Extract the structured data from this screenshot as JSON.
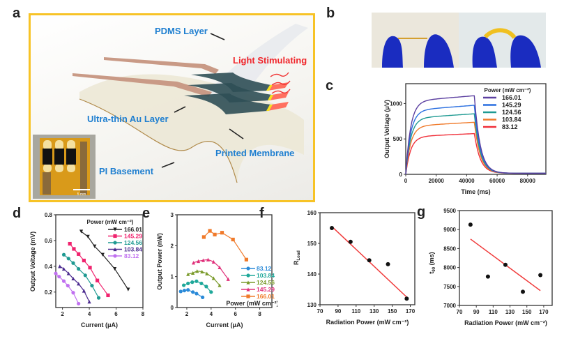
{
  "figure": {
    "panel_labels": {
      "a": "a",
      "b": "b",
      "c": "c",
      "d": "d",
      "e": "e",
      "f": "f",
      "g": "g"
    },
    "colors": {
      "frame": "#f7c326",
      "label_blue": "#1f7fd0",
      "label_red": "#f0262b",
      "fit_line": "#f03a3a"
    }
  },
  "panel_a": {
    "labels": {
      "pdms": "PDMS Layer",
      "light": "Light Stimulating",
      "au": "Ultra-thin Au Layer",
      "membrane": "Printed Membrane",
      "pi": "PI Basement"
    },
    "inset_scale": "5 mm"
  },
  "panel_b": {
    "photos": [
      "flat-device-between-fingers",
      "bent-device-between-fingers"
    ]
  },
  "chart_data": [
    {
      "id": "c",
      "type": "line",
      "xlabel": "Time (ms)",
      "ylabel": "Output Voltage (μV)",
      "xlim": [
        0,
        92000
      ],
      "ylim": [
        0,
        1280
      ],
      "xticks": [
        0,
        20000,
        40000,
        60000,
        80000
      ],
      "yticks": [
        0,
        500,
        1000
      ],
      "legend_title": "Power (mW cm⁻²)",
      "legend_position": "top-right",
      "series": [
        {
          "name": "166.01",
          "color": "#5b3fa0",
          "plateau": 1110,
          "onset": 1030
        },
        {
          "name": "145.29",
          "color": "#2a6fe0",
          "plateau": 975,
          "onset": 900
        },
        {
          "name": "124.56",
          "color": "#1f9a92",
          "plateau": 855,
          "onset": 790
        },
        {
          "name": "103.84",
          "color": "#f07a2a",
          "plateau": 735,
          "onset": 680
        },
        {
          "name": "83.12",
          "color": "#f0303a",
          "plateau": 575,
          "onset": 530
        }
      ],
      "light_on_ms": [
        0,
        45000
      ]
    },
    {
      "id": "d",
      "type": "line",
      "xlabel": "Current (μA)",
      "ylabel": "Output Voltage (mV)",
      "xlim": [
        1.5,
        8
      ],
      "ylim": [
        0.08,
        0.8
      ],
      "xticks": [
        2,
        4,
        6,
        8
      ],
      "yticks": [
        0.2,
        0.4,
        0.6,
        0.8
      ],
      "legend_title": "Power (mW cm⁻²)",
      "legend_position": "top-right",
      "series": [
        {
          "name": "166.01",
          "color": "#222222",
          "marker": "triangle-down",
          "x": [
            3.4,
            3.9,
            4.4,
            5.0,
            5.9,
            6.9
          ],
          "y": [
            0.67,
            0.63,
            0.555,
            0.49,
            0.38,
            0.22
          ]
        },
        {
          "name": "145.29",
          "color": "#f0236e",
          "marker": "square",
          "x": [
            2.55,
            2.85,
            3.2,
            3.6,
            4.05,
            4.6,
            5.4
          ],
          "y": [
            0.575,
            0.535,
            0.495,
            0.445,
            0.39,
            0.29,
            0.175
          ]
        },
        {
          "name": "124.56",
          "color": "#1f9a92",
          "marker": "circle",
          "x": [
            2.1,
            2.45,
            2.8,
            3.2,
            3.7,
            4.2,
            4.7
          ],
          "y": [
            0.49,
            0.46,
            0.425,
            0.38,
            0.33,
            0.25,
            0.155
          ]
        },
        {
          "name": "103.84",
          "color": "#4b2a8f",
          "marker": "triangle",
          "x": [
            1.8,
            2.1,
            2.45,
            2.8,
            3.2,
            3.6,
            4.0
          ],
          "y": [
            0.4,
            0.38,
            0.345,
            0.305,
            0.265,
            0.21,
            0.125
          ]
        },
        {
          "name": "83.12",
          "color": "#c070f0",
          "marker": "circle",
          "x": [
            1.5,
            1.75,
            2.1,
            2.4,
            2.8,
            3.2
          ],
          "y": [
            0.345,
            0.32,
            0.285,
            0.25,
            0.195,
            0.11
          ]
        }
      ]
    },
    {
      "id": "e",
      "type": "line",
      "xlabel": "Current (μA)",
      "ylabel": "Output Power (nW)",
      "xlim": [
        1.2,
        9
      ],
      "ylim": [
        0,
        3
      ],
      "xticks": [
        2,
        4,
        6,
        8
      ],
      "yticks": [
        0,
        1,
        2,
        3
      ],
      "legend_title": "Power (mW cm⁻²)",
      "legend_position": "bottom-right",
      "series": [
        {
          "name": "83.12",
          "color": "#2a8ad8",
          "x": [
            1.5,
            1.8,
            2.1,
            2.5,
            2.8,
            3.3
          ],
          "y": [
            0.52,
            0.55,
            0.57,
            0.5,
            0.45,
            0.33
          ]
        },
        {
          "name": "103.84",
          "color": "#1fa89a",
          "x": [
            1.75,
            2.1,
            2.45,
            2.8,
            3.2,
            3.6,
            4.0
          ],
          "y": [
            0.72,
            0.78,
            0.82,
            0.85,
            0.78,
            0.68,
            0.5
          ]
        },
        {
          "name": "124.56",
          "color": "#7a9a2a",
          "x": [
            2.1,
            2.5,
            2.85,
            3.25,
            3.65,
            4.2,
            4.7
          ],
          "y": [
            1.08,
            1.12,
            1.18,
            1.16,
            1.1,
            0.95,
            0.72
          ]
        },
        {
          "name": "145.29",
          "color": "#e0307a",
          "x": [
            2.55,
            2.95,
            3.35,
            3.75,
            4.2,
            4.7,
            5.4
          ],
          "y": [
            1.45,
            1.5,
            1.53,
            1.55,
            1.48,
            1.3,
            0.92
          ]
        },
        {
          "name": "166.01",
          "color": "#f07a2a",
          "x": [
            3.4,
            3.9,
            4.3,
            4.9,
            5.8,
            6.9
          ],
          "y": [
            2.28,
            2.48,
            2.36,
            2.42,
            2.2,
            1.55
          ]
        }
      ]
    },
    {
      "id": "f",
      "type": "scatter",
      "xlabel": "Radiation Power (mW cm⁻²)",
      "ylabel": "R_Load",
      "ylabel_main": "R",
      "ylabel_sub": "Load",
      "xlim": [
        70,
        175
      ],
      "ylim": [
        130,
        160
      ],
      "xticks": [
        70,
        90,
        110,
        130,
        150,
        170
      ],
      "yticks": [
        130,
        140,
        150,
        160
      ],
      "x": [
        83.12,
        103.84,
        124.56,
        145.29,
        166.01
      ],
      "y": [
        155,
        150.5,
        144.5,
        143.2,
        132
      ],
      "fit": {
        "x": [
          83.12,
          166.01
        ],
        "y": [
          155.5,
          132.5
        ]
      }
    },
    {
      "id": "g",
      "type": "scatter",
      "xlabel": "Radiation Power (mW cm⁻²)",
      "ylabel": "t_90 (ms)",
      "ylabel_main": "t",
      "ylabel_sub": "90",
      "ylabel_unit": " (ms)",
      "xlim": [
        70,
        180
      ],
      "ylim": [
        7000,
        9500
      ],
      "xticks": [
        70,
        90,
        110,
        130,
        150,
        170
      ],
      "yticks": [
        7000,
        7500,
        8000,
        8500,
        9000,
        9500
      ],
      "x": [
        83.12,
        103.84,
        124.56,
        145.29,
        166.01
      ],
      "y": [
        9130,
        7760,
        8070,
        7360,
        7800
      ],
      "fit": {
        "x": [
          83.12,
          166.01
        ],
        "y": [
          8750,
          7390
        ]
      }
    }
  ]
}
